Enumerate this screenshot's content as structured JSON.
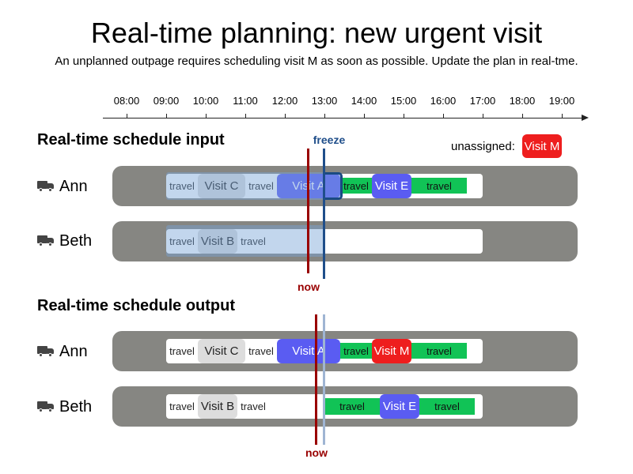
{
  "header": {
    "title": "Real-time planning: new urgent visit",
    "subtitle": "An unplanned outpage requires scheduling visit M as soon as possible. Update the plan in real-tme."
  },
  "timeline": {
    "ticks": [
      "08:00",
      "09:00",
      "10:00",
      "11:00",
      "12:00",
      "13:00",
      "14:00",
      "15:00",
      "16:00",
      "17:00",
      "18:00",
      "19:00"
    ]
  },
  "input": {
    "section_title": "Real-time schedule input",
    "freeze_label": "freeze",
    "now_label": "now",
    "unassigned": {
      "label": "unassigned:",
      "visit": "Visit M"
    },
    "ann": {
      "name": "Ann",
      "travel_1": "travel",
      "visit_1": "Visit C",
      "travel_2": "travel",
      "visit_2": "Visit A",
      "travel_3": "travel",
      "visit_3": "Visit E",
      "travel_4": "travel"
    },
    "beth": {
      "name": "Beth",
      "travel_1": "travel",
      "visit_1": "Visit B",
      "travel_2": "travel"
    }
  },
  "output": {
    "section_title": "Real-time schedule output",
    "now_label": "now",
    "ann": {
      "name": "Ann",
      "travel_1": "travel",
      "visit_1": "Visit C",
      "travel_2": "travel",
      "visit_2": "Visit A",
      "travel_3": "travel",
      "visit_3": "Visit M",
      "travel_4": "travel"
    },
    "beth": {
      "name": "Beth",
      "travel_1": "travel",
      "visit_1": "Visit B",
      "travel_2": "travel",
      "travel_3": "travel",
      "visit_2": "Visit E",
      "travel_4": "travel"
    }
  },
  "colors": {
    "assigned_visit": "#5a5cf2",
    "urgent_visit": "#ee1e1e",
    "new_travel": "#11c356",
    "completed_visit": "#dddddd",
    "now_line": "#990000",
    "freeze_line": "#1f4e8a",
    "lane_background": "#868682"
  }
}
